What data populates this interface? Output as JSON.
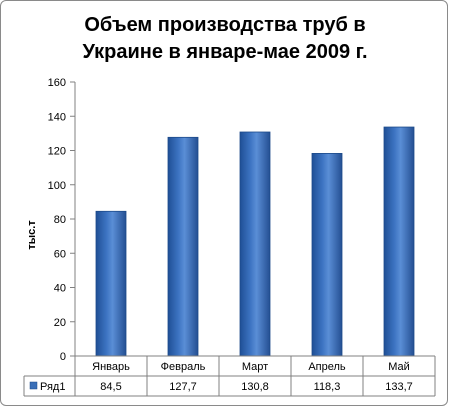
{
  "chart_data": {
    "type": "bar",
    "title": [
      "Объем производства труб в",
      "Украине в январе-мае 2009 г."
    ],
    "ylabel": "тыс.т",
    "xlabel": "",
    "categories": [
      "Январь",
      "Февраль",
      "Март",
      "Апрель",
      "Май"
    ],
    "series": [
      {
        "name": "Ряд1",
        "values": [
          84.5,
          127.7,
          130.8,
          118.3,
          133.7
        ],
        "labels": [
          "84,5",
          "127,7",
          "130,8",
          "118,3",
          "133,7"
        ],
        "color": "#3a6fb8"
      }
    ],
    "ylim": [
      0,
      160
    ],
    "yticks": [
      0,
      20,
      40,
      60,
      80,
      100,
      120,
      140,
      160
    ],
    "grid": false,
    "legend": "data-table"
  }
}
